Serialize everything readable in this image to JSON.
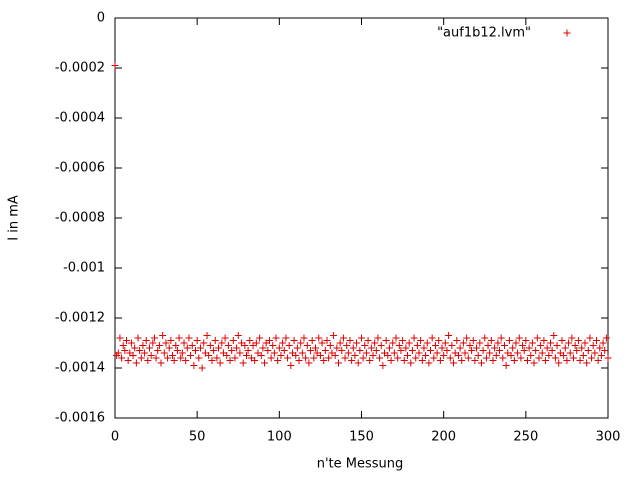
{
  "chart_data": {
    "type": "scatter",
    "xlabel": "n'te Messung",
    "ylabel": "I in mA",
    "xlim": [
      0,
      300
    ],
    "ylim": [
      -0.0016,
      0
    ],
    "xticks": [
      0,
      50,
      100,
      150,
      200,
      250,
      300
    ],
    "yticks": [
      0,
      -0.0002,
      -0.0004,
      -0.0006,
      -0.0008,
      -0.001,
      -0.0012,
      -0.0014,
      -0.0016
    ],
    "legend": "top-right",
    "series": [
      {
        "name": "\"auf1b12.lvm\"",
        "color": "#e00000",
        "x": [
          0,
          1,
          2,
          3,
          4,
          5,
          6,
          7,
          8,
          9,
          10,
          11,
          12,
          13,
          14,
          15,
          16,
          17,
          18,
          19,
          20,
          21,
          22,
          23,
          24,
          25,
          26,
          27,
          28,
          29,
          30,
          31,
          32,
          33,
          34,
          35,
          36,
          37,
          38,
          39,
          40,
          41,
          42,
          43,
          44,
          45,
          46,
          47,
          48,
          49,
          50,
          51,
          52,
          53,
          54,
          55,
          56,
          57,
          58,
          59,
          60,
          61,
          62,
          63,
          64,
          65,
          66,
          67,
          68,
          69,
          70,
          71,
          72,
          73,
          74,
          75,
          76,
          77,
          78,
          79,
          80,
          81,
          82,
          83,
          84,
          85,
          86,
          87,
          88,
          89,
          90,
          91,
          92,
          93,
          94,
          95,
          96,
          97,
          98,
          99,
          100,
          101,
          102,
          103,
          104,
          105,
          106,
          107,
          108,
          109,
          110,
          111,
          112,
          113,
          114,
          115,
          116,
          117,
          118,
          119,
          120,
          121,
          122,
          123,
          124,
          125,
          126,
          127,
          128,
          129,
          130,
          131,
          132,
          133,
          134,
          135,
          136,
          137,
          138,
          139,
          140,
          141,
          142,
          143,
          144,
          145,
          146,
          147,
          148,
          149,
          150,
          151,
          152,
          153,
          154,
          155,
          156,
          157,
          158,
          159,
          160,
          161,
          162,
          163,
          164,
          165,
          166,
          167,
          168,
          169,
          170,
          171,
          172,
          173,
          174,
          175,
          176,
          177,
          178,
          179,
          180,
          181,
          182,
          183,
          184,
          185,
          186,
          187,
          188,
          189,
          190,
          191,
          192,
          193,
          194,
          195,
          196,
          197,
          198,
          199,
          200,
          201,
          202,
          203,
          204,
          205,
          206,
          207,
          208,
          209,
          210,
          211,
          212,
          213,
          214,
          215,
          216,
          217,
          218,
          219,
          220,
          221,
          222,
          223,
          224,
          225,
          226,
          227,
          228,
          229,
          230,
          231,
          232,
          233,
          234,
          235,
          236,
          237,
          238,
          239,
          240,
          241,
          242,
          243,
          244,
          245,
          246,
          247,
          248,
          249,
          250,
          251,
          252,
          253,
          254,
          255,
          256,
          257,
          258,
          259,
          260,
          261,
          262,
          263,
          264,
          265,
          266,
          267,
          268,
          269,
          270,
          271,
          272,
          273,
          274,
          275,
          276,
          277,
          278,
          279,
          280,
          281,
          282,
          283,
          284,
          285,
          286,
          287,
          288,
          289,
          290,
          291,
          292,
          293,
          294,
          295,
          296,
          297,
          298,
          299,
          300
        ],
        "values": [
          -0.00019,
          -0.00135,
          -0.00134,
          -0.00128,
          -0.00136,
          -0.00131,
          -0.00133,
          -0.00129,
          -0.00137,
          -0.00134,
          -0.0013,
          -0.00135,
          -0.00132,
          -0.00138,
          -0.00128,
          -0.00133,
          -0.00136,
          -0.00131,
          -0.00134,
          -0.00129,
          -0.00137,
          -0.00132,
          -0.00135,
          -0.0013,
          -0.00128,
          -0.00136,
          -0.00133,
          -0.00131,
          -0.00138,
          -0.00127,
          -0.00134,
          -0.0013,
          -0.00136,
          -0.00132,
          -0.00129,
          -0.00135,
          -0.00137,
          -0.00131,
          -0.00133,
          -0.00128,
          -0.00136,
          -0.00134,
          -0.0013,
          -0.00137,
          -0.00132,
          -0.00128,
          -0.00135,
          -0.00131,
          -0.00139,
          -0.00133,
          -0.00129,
          -0.00136,
          -0.00132,
          -0.0014,
          -0.0013,
          -0.00134,
          -0.00127,
          -0.00135,
          -0.00131,
          -0.00137,
          -0.00133,
          -0.00129,
          -0.00136,
          -0.00132,
          -0.00138,
          -0.0013,
          -0.00134,
          -0.00128,
          -0.00135,
          -0.00131,
          -0.00137,
          -0.00133,
          -0.00129,
          -0.00136,
          -0.00132,
          -0.00127,
          -0.00134,
          -0.0013,
          -0.00138,
          -0.00131,
          -0.00135,
          -0.00133,
          -0.00129,
          -0.00136,
          -0.00131,
          -0.00137,
          -0.0013,
          -0.00134,
          -0.00128,
          -0.00135,
          -0.00132,
          -0.00138,
          -0.0013,
          -0.00133,
          -0.00129,
          -0.00136,
          -0.00131,
          -0.00134,
          -0.00128,
          -0.00137,
          -0.00132,
          -0.00135,
          -0.0013,
          -0.00133,
          -0.00128,
          -0.00136,
          -0.00131,
          -0.00139,
          -0.00134,
          -0.00129,
          -0.00135,
          -0.00132,
          -0.00137,
          -0.0013,
          -0.00134,
          -0.00128,
          -0.00136,
          -0.00131,
          -0.00138,
          -0.00133,
          -0.00129,
          -0.00136,
          -0.00132,
          -0.00134,
          -0.00128,
          -0.00135,
          -0.0013,
          -0.00137,
          -0.00133,
          -0.00129,
          -0.00136,
          -0.00131,
          -0.00134,
          -0.00127,
          -0.00135,
          -0.00132,
          -0.00138,
          -0.0013,
          -0.00133,
          -0.00128,
          -0.00136,
          -0.00131,
          -0.00134,
          -0.00129,
          -0.00137,
          -0.00132,
          -0.00135,
          -0.0013,
          -0.00138,
          -0.00133,
          -0.00128,
          -0.00136,
          -0.00131,
          -0.00134,
          -0.00129,
          -0.00137,
          -0.00132,
          -0.00135,
          -0.0013,
          -0.00133,
          -0.00128,
          -0.00136,
          -0.00131,
          -0.00139,
          -0.00134,
          -0.00129,
          -0.00135,
          -0.00132,
          -0.00137,
          -0.0013,
          -0.00134,
          -0.00128,
          -0.00136,
          -0.00131,
          -0.00133,
          -0.00129,
          -0.00137,
          -0.00132,
          -0.00135,
          -0.0013,
          -0.00138,
          -0.00133,
          -0.00128,
          -0.00136,
          -0.00131,
          -0.00134,
          -0.00129,
          -0.00137,
          -0.00132,
          -0.00135,
          -0.0013,
          -0.00138,
          -0.00133,
          -0.00128,
          -0.00136,
          -0.00131,
          -0.00134,
          -0.00129,
          -0.00137,
          -0.00132,
          -0.00135,
          -0.0013,
          -0.00133,
          -0.00127,
          -0.00136,
          -0.00131,
          -0.00138,
          -0.00134,
          -0.00129,
          -0.00135,
          -0.00132,
          -0.00137,
          -0.0013,
          -0.00134,
          -0.00128,
          -0.00136,
          -0.00131,
          -0.00133,
          -0.00129,
          -0.00137,
          -0.00132,
          -0.00135,
          -0.0013,
          -0.00138,
          -0.00133,
          -0.00128,
          -0.00136,
          -0.00131,
          -0.00134,
          -0.00129,
          -0.00137,
          -0.00132,
          -0.00135,
          -0.0013,
          -0.00133,
          -0.00128,
          -0.00136,
          -0.00131,
          -0.00139,
          -0.00134,
          -0.00129,
          -0.00135,
          -0.00132,
          -0.00137,
          -0.0013,
          -0.00134,
          -0.00128,
          -0.00136,
          -0.00131,
          -0.00133,
          -0.00129,
          -0.00137,
          -0.00132,
          -0.00135,
          -0.0013,
          -0.00138,
          -0.00133,
          -0.00128,
          -0.00136,
          -0.00131,
          -0.00134,
          -0.00129,
          -0.00137,
          -0.00132,
          -0.00135,
          -0.0013,
          -0.00133,
          -0.00127,
          -0.00136,
          -0.00131,
          -0.00138,
          -0.00134,
          -0.00129,
          -0.00135,
          -0.00132,
          -0.00137,
          -0.0013,
          -0.00134,
          -0.00128,
          -0.00136,
          -0.00131,
          -0.00133,
          -0.00129,
          -0.00137,
          -0.00132,
          -0.00135,
          -0.0013,
          -0.00138,
          -0.00133,
          -0.00128,
          -0.00136,
          -0.00131,
          -0.00134,
          -0.00129,
          -0.00137,
          -0.00132,
          -0.00135,
          -0.0013,
          -0.00133,
          -0.00128,
          -0.00136
        ]
      }
    ]
  }
}
